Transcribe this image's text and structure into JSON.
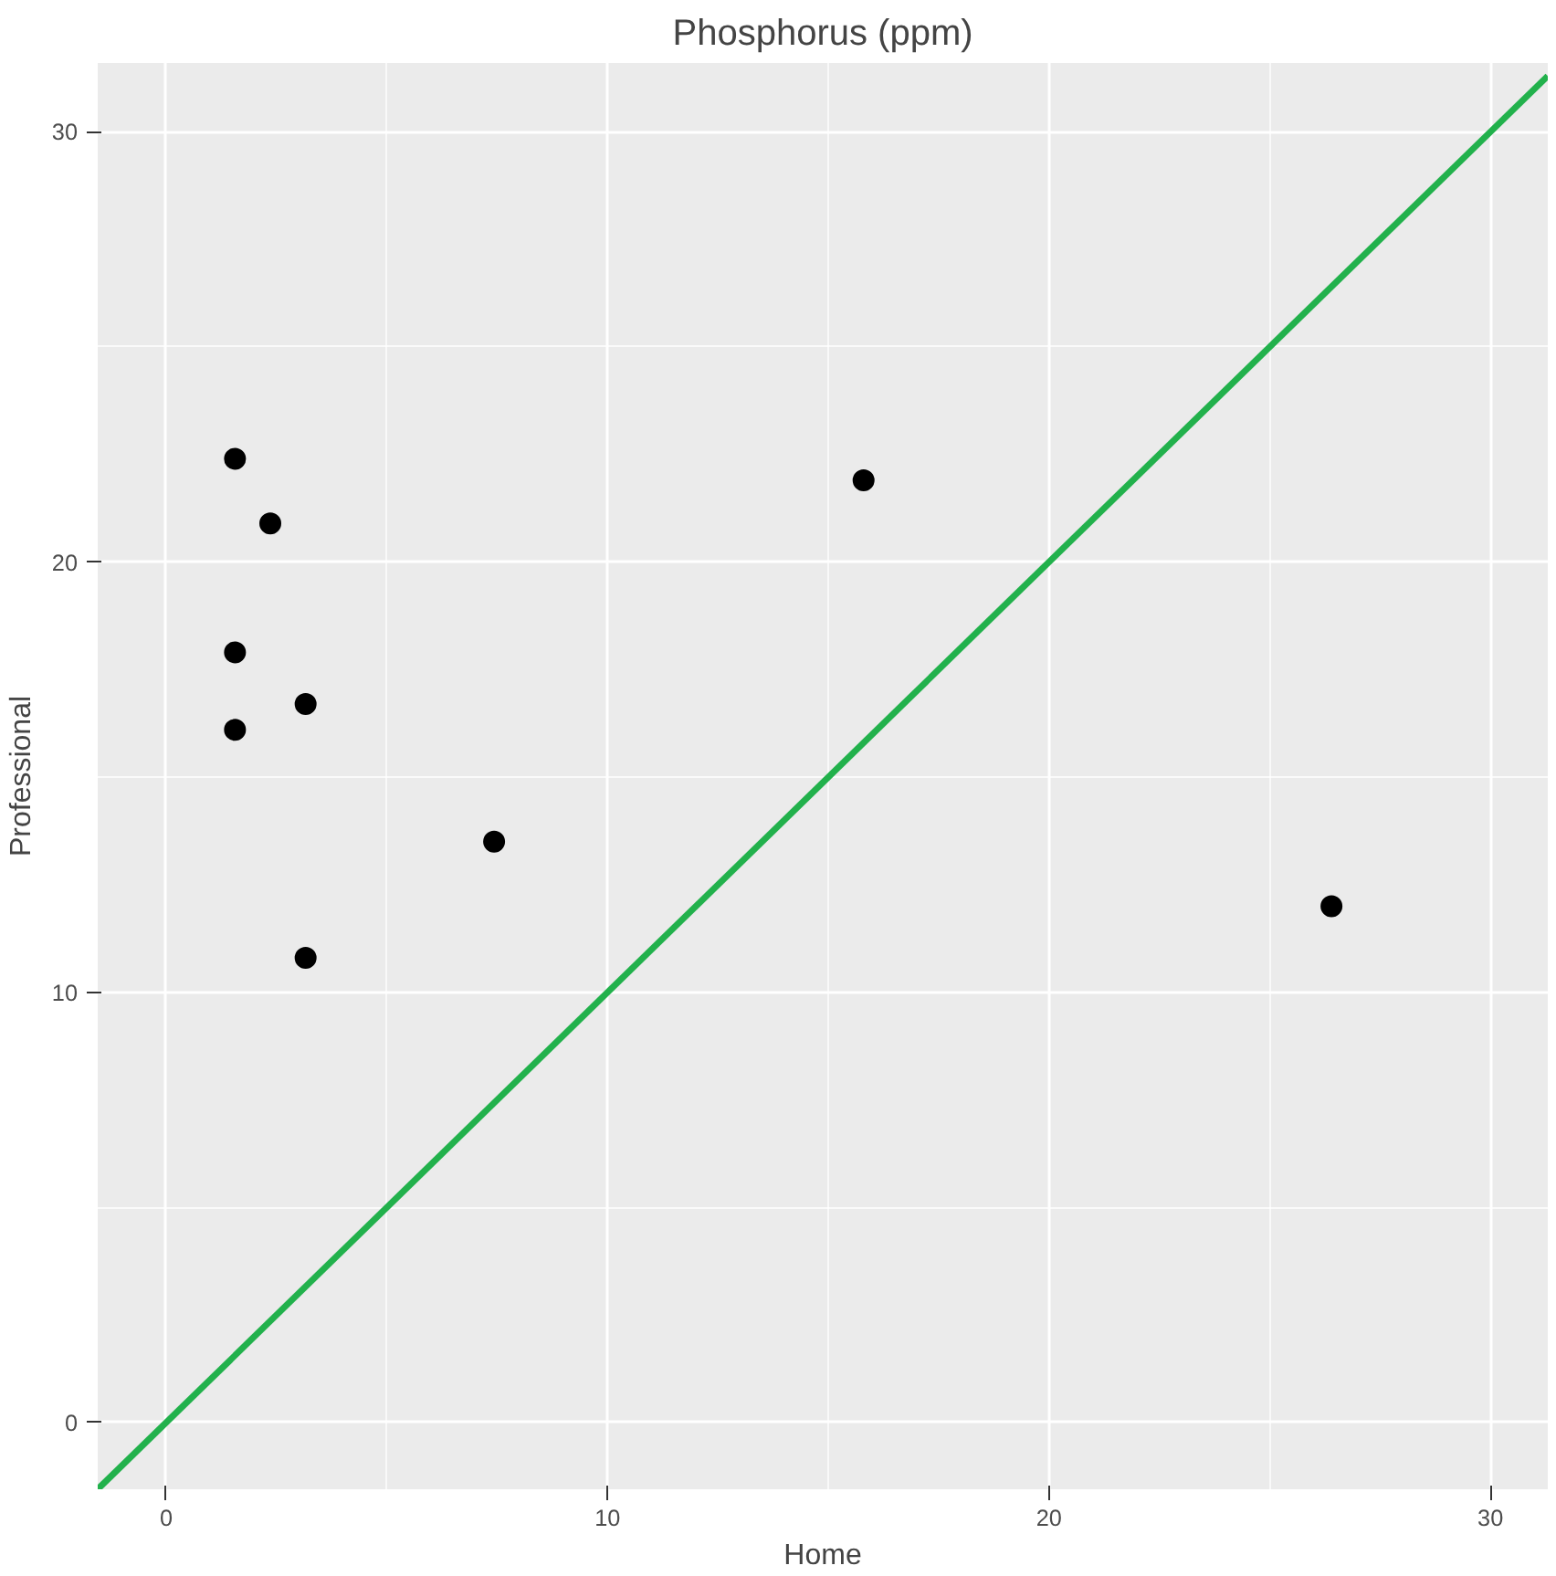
{
  "chart_data": {
    "type": "scatter",
    "title": "Phosphorus (ppm)",
    "xlabel": "Home",
    "ylabel": "Professional",
    "xlim": [
      -1.55,
      31.3
    ],
    "ylim": [
      -1.55,
      31.6
    ],
    "xticks": [
      0,
      10,
      20,
      30
    ],
    "yticks": [
      0,
      10,
      20,
      30
    ],
    "grid": true,
    "series": [
      {
        "color": "#000000",
        "marker": "circle",
        "x": [
          1.56,
          2.36,
          1.56,
          1.56,
          3.16,
          3.16,
          7.43,
          15.8,
          26.4
        ],
        "values": [
          22.4,
          20.9,
          17.9,
          16.1,
          16.7,
          10.8,
          13.5,
          21.9,
          12.0
        ]
      },
      {
        "type": "line",
        "color": "#22b14c",
        "x": [
          -1.55,
          31.3
        ],
        "values": [
          -1.55,
          31.3
        ],
        "line_style": "solid"
      }
    ]
  }
}
